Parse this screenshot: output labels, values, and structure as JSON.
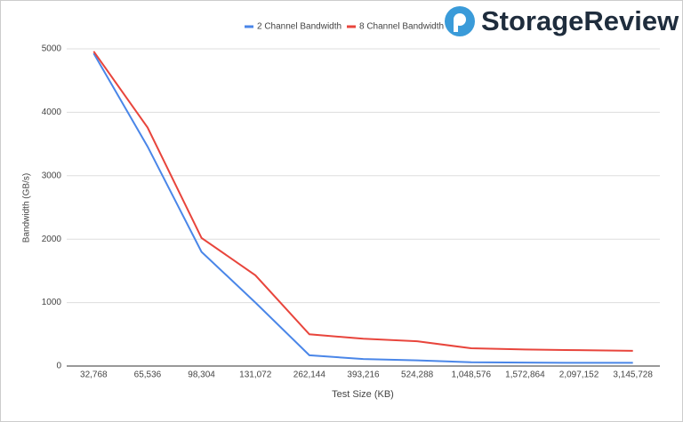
{
  "logo": "StorageReview",
  "chart_data": {
    "type": "line",
    "x_label": "Test Size (KB)",
    "y_label": "Bandwidth (GB/s)",
    "categories": [
      "32,768",
      "65,536",
      "98,304",
      "131,072",
      "262,144",
      "393,216",
      "524,288",
      "1,048,576",
      "1,572,864",
      "2,097,152",
      "3,145,728"
    ],
    "series": [
      {
        "name": "2 Channel Bandwidth",
        "color": "#4a86e8",
        "values": [
          4930,
          3460,
          1800,
          1000,
          170,
          110,
          90,
          60,
          55,
          50,
          50
        ]
      },
      {
        "name": "8 Channel Bandwidth",
        "color": "#e8453c",
        "values": [
          4960,
          3760,
          2020,
          1430,
          500,
          430,
          390,
          280,
          260,
          250,
          240
        ]
      }
    ],
    "ylim": [
      0,
      5000
    ],
    "yticks": [
      0,
      1000,
      2000,
      3000,
      4000,
      5000
    ],
    "grid": true
  }
}
